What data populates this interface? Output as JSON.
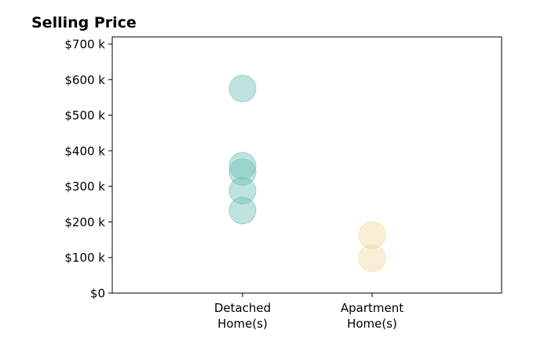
{
  "chart_data": {
    "type": "scatter",
    "title": "Selling Price",
    "xlabel": "",
    "ylabel": "",
    "categories": [
      [
        "Detached",
        "Home(s)"
      ],
      [
        "Apartment",
        "Home(s)"
      ]
    ],
    "y_ticks": [
      0,
      100,
      200,
      300,
      400,
      500,
      600,
      700
    ],
    "y_tick_labels": [
      "$0",
      "$100 k",
      "$200 k",
      "$300 k",
      "$400 k",
      "$500 k",
      "$600 k",
      "$700 k"
    ],
    "ylim": [
      0,
      720
    ],
    "grid": false,
    "series": [
      {
        "category": 0,
        "color": "#6fc1b5",
        "values": [
          575,
          358,
          340,
          288,
          232
        ]
      },
      {
        "category": 1,
        "color": "#f3d9a4",
        "values": [
          163,
          98
        ]
      }
    ]
  }
}
